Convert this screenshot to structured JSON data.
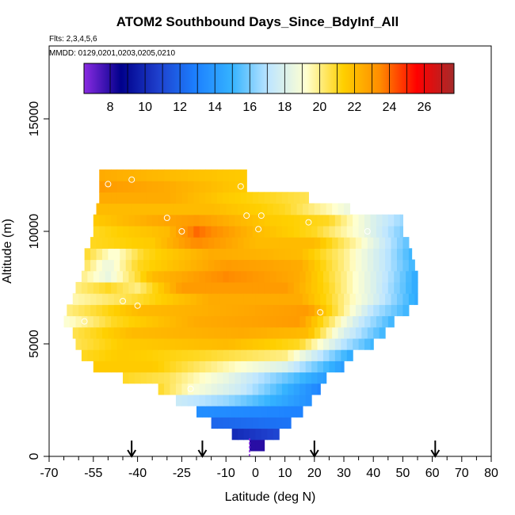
{
  "chart_data": {
    "type": "heatmap",
    "title": "ATOM2 Southbound Days_Since_BdyInf_All",
    "flights_label": "Flts: 2,3,4,5,6",
    "dates_label": "MMDD: 0129,0201,0203,0205,0210",
    "xlabel": "Latitude (deg N)",
    "ylabel": "Altitude (m)",
    "xlim": [
      -70,
      80
    ],
    "ylim": [
      0,
      18000
    ],
    "x_ticks": [
      -70,
      -55,
      -40,
      -25,
      -10,
      0,
      10,
      20,
      30,
      40,
      50,
      60,
      70,
      80
    ],
    "x_minor_ticks": [
      -65,
      -60,
      -50,
      -45,
      -35,
      -30,
      -20,
      -15,
      -5,
      5,
      15,
      25,
      35,
      45,
      55,
      65,
      75
    ],
    "y_ticks": [
      0,
      5000,
      10000,
      15000
    ],
    "colorbar": {
      "min": 6.5,
      "max": 27.7,
      "ticks": [
        8,
        10,
        12,
        14,
        16,
        18,
        20,
        22,
        24,
        26
      ],
      "colors": [
        "#8a2be2",
        "#00008b",
        "#1e3fcc",
        "#1c7fff",
        "#35b3ff",
        "#bfe6ff",
        "#ffffd0",
        "#ffd000",
        "#ff8c00",
        "#ff0000",
        "#a52a2a"
      ]
    },
    "profile_rows": [
      {
        "alt": 500,
        "lat_min": -2,
        "lat_max": 3,
        "anchors": [
          [
            -2,
            8
          ],
          [
            3,
            8
          ]
        ]
      },
      {
        "alt": 1000,
        "lat_min": -8,
        "lat_max": 8,
        "anchors": [
          [
            -8,
            10
          ],
          [
            8,
            11
          ]
        ]
      },
      {
        "alt": 1500,
        "lat_min": -15,
        "lat_max": 12,
        "anchors": [
          [
            -15,
            12
          ],
          [
            12,
            12.5
          ]
        ]
      },
      {
        "alt": 2000,
        "lat_min": -20,
        "lat_max": 16,
        "anchors": [
          [
            -20,
            13.5
          ],
          [
            16,
            13
          ]
        ]
      },
      {
        "alt": 2500,
        "lat_min": -27,
        "lat_max": 19,
        "anchors": [
          [
            -27,
            17.5
          ],
          [
            -10,
            16.5
          ],
          [
            19,
            13.5
          ]
        ]
      },
      {
        "alt": 3000,
        "lat_min": -33,
        "lat_max": 22,
        "anchors": [
          [
            -33,
            21
          ],
          [
            -20,
            19
          ],
          [
            -5,
            17.5
          ],
          [
            22,
            13
          ]
        ]
      },
      {
        "alt": 3500,
        "lat_min": -45,
        "lat_max": 24,
        "anchors": [
          [
            -45,
            21
          ],
          [
            -30,
            20.5
          ],
          [
            -10,
            18.5
          ],
          [
            24,
            14
          ]
        ]
      },
      {
        "alt": 4000,
        "lat_min": -55,
        "lat_max": 30,
        "anchors": [
          [
            -55,
            21.5
          ],
          [
            -35,
            21.5
          ],
          [
            -15,
            20
          ],
          [
            10,
            18
          ],
          [
            30,
            14
          ]
        ]
      },
      {
        "alt": 4500,
        "lat_min": -59,
        "lat_max": 33,
        "anchors": [
          [
            -59,
            21
          ],
          [
            -45,
            21.5
          ],
          [
            -20,
            21
          ],
          [
            10,
            20
          ],
          [
            33,
            14.5
          ]
        ]
      },
      {
        "alt": 5000,
        "lat_min": -61,
        "lat_max": 40,
        "anchors": [
          [
            -61,
            20.5
          ],
          [
            -45,
            21.5
          ],
          [
            -10,
            22
          ],
          [
            15,
            21
          ],
          [
            30,
            17
          ],
          [
            40,
            15
          ]
        ]
      },
      {
        "alt": 5500,
        "lat_min": -62,
        "lat_max": 44,
        "anchors": [
          [
            -62,
            20.5
          ],
          [
            -42,
            22
          ],
          [
            -5,
            22.5
          ],
          [
            18,
            22
          ],
          [
            30,
            18
          ],
          [
            44,
            15
          ]
        ]
      },
      {
        "alt": 6000,
        "lat_min": -65,
        "lat_max": 47,
        "anchors": [
          [
            -65,
            19
          ],
          [
            -48,
            21
          ],
          [
            -20,
            22.5
          ],
          [
            15,
            23
          ],
          [
            25,
            20.5
          ],
          [
            35,
            17.5
          ],
          [
            47,
            15
          ]
        ]
      },
      {
        "alt": 6500,
        "lat_min": -64,
        "lat_max": 52,
        "anchors": [
          [
            -64,
            20
          ],
          [
            -40,
            22
          ],
          [
            -10,
            22.5
          ],
          [
            18,
            23
          ],
          [
            28,
            20.5
          ],
          [
            40,
            17
          ],
          [
            52,
            15
          ]
        ]
      },
      {
        "alt": 7000,
        "lat_min": -62,
        "lat_max": 55,
        "anchors": [
          [
            -62,
            19.5
          ],
          [
            -45,
            20.5
          ],
          [
            -15,
            22.5
          ],
          [
            15,
            22.5
          ],
          [
            25,
            21
          ],
          [
            40,
            18
          ],
          [
            55,
            14.5
          ]
        ]
      },
      {
        "alt": 7500,
        "lat_min": -61,
        "lat_max": 55,
        "anchors": [
          [
            -61,
            20
          ],
          [
            -50,
            21
          ],
          [
            -40,
            20
          ],
          [
            -25,
            23
          ],
          [
            10,
            23
          ],
          [
            25,
            21
          ],
          [
            40,
            18
          ],
          [
            55,
            14.5
          ]
        ]
      },
      {
        "alt": 8000,
        "lat_min": -59,
        "lat_max": 55,
        "anchors": [
          [
            -59,
            20
          ],
          [
            -50,
            18.5
          ],
          [
            -35,
            22
          ],
          [
            -10,
            23.5
          ],
          [
            15,
            22.5
          ],
          [
            30,
            20
          ],
          [
            45,
            17
          ],
          [
            55,
            14.5
          ]
        ]
      },
      {
        "alt": 8500,
        "lat_min": -58,
        "lat_max": 54,
        "anchors": [
          [
            -58,
            20.5
          ],
          [
            -50,
            18.5
          ],
          [
            -40,
            21
          ],
          [
            -10,
            23
          ],
          [
            15,
            22.5
          ],
          [
            30,
            20
          ],
          [
            45,
            17
          ],
          [
            54,
            15
          ]
        ]
      },
      {
        "alt": 9000,
        "lat_min": -58,
        "lat_max": 53,
        "anchors": [
          [
            -58,
            21
          ],
          [
            -48,
            19
          ],
          [
            -38,
            21
          ],
          [
            -15,
            22.5
          ],
          [
            15,
            22
          ],
          [
            30,
            20
          ],
          [
            45,
            17
          ],
          [
            53,
            15
          ]
        ]
      },
      {
        "alt": 9500,
        "lat_min": -56,
        "lat_max": 52,
        "anchors": [
          [
            -56,
            21
          ],
          [
            -35,
            21.5
          ],
          [
            -20,
            23.5
          ],
          [
            0,
            22
          ],
          [
            20,
            22
          ],
          [
            35,
            19.5
          ],
          [
            52,
            15.5
          ]
        ]
      },
      {
        "alt": 10000,
        "lat_min": -55,
        "lat_max": 50,
        "anchors": [
          [
            -55,
            21
          ],
          [
            -30,
            22
          ],
          [
            -20,
            24
          ],
          [
            0,
            22
          ],
          [
            20,
            21
          ],
          [
            35,
            19
          ],
          [
            50,
            16
          ]
        ]
      },
      {
        "alt": 10500,
        "lat_min": -55,
        "lat_max": 50,
        "anchors": [
          [
            -55,
            21.5
          ],
          [
            -35,
            22.5
          ],
          [
            -20,
            23
          ],
          [
            5,
            21.5
          ],
          [
            25,
            21
          ],
          [
            40,
            18
          ],
          [
            50,
            16.5
          ]
        ]
      },
      {
        "alt": 11000,
        "lat_min": -54,
        "lat_max": 32,
        "anchors": [
          [
            -54,
            22
          ],
          [
            -35,
            22
          ],
          [
            -15,
            22
          ],
          [
            10,
            21
          ],
          [
            25,
            19.5
          ],
          [
            32,
            18.5
          ]
        ]
      },
      {
        "alt": 11500,
        "lat_min": -53,
        "lat_max": 18,
        "anchors": [
          [
            -53,
            22.5
          ],
          [
            -30,
            22.5
          ],
          [
            -10,
            21.5
          ],
          [
            5,
            21
          ],
          [
            18,
            20.5
          ]
        ]
      },
      {
        "alt": 12000,
        "lat_min": -53,
        "lat_max": -3,
        "anchors": [
          [
            -53,
            23
          ],
          [
            -30,
            22.5
          ],
          [
            -3,
            21.5
          ]
        ]
      },
      {
        "alt": 12500,
        "lat_min": -53,
        "lat_max": -3,
        "anchors": [
          [
            -53,
            22.5
          ],
          [
            -30,
            22
          ],
          [
            -3,
            21.5
          ]
        ]
      }
    ],
    "sample_points": [
      [
        -42,
        12300
      ],
      [
        -50,
        12100
      ],
      [
        -5,
        12000
      ],
      [
        -30,
        10600
      ],
      [
        -3,
        10700
      ],
      [
        2,
        10700
      ],
      [
        18,
        10400
      ],
      [
        38,
        10000
      ],
      [
        57,
        10600
      ],
      [
        -25,
        10000
      ],
      [
        1,
        10100
      ],
      [
        -45,
        6900
      ],
      [
        -40,
        6700
      ],
      [
        -58,
        6000
      ],
      [
        -57,
        4000
      ],
      [
        -44,
        3000
      ],
      [
        22,
        6400
      ],
      [
        62,
        7000
      ],
      [
        -22,
        3000
      ]
    ],
    "arrow_latitudes": [
      -42,
      -18,
      20,
      61
    ],
    "marker_latitude": -2
  }
}
